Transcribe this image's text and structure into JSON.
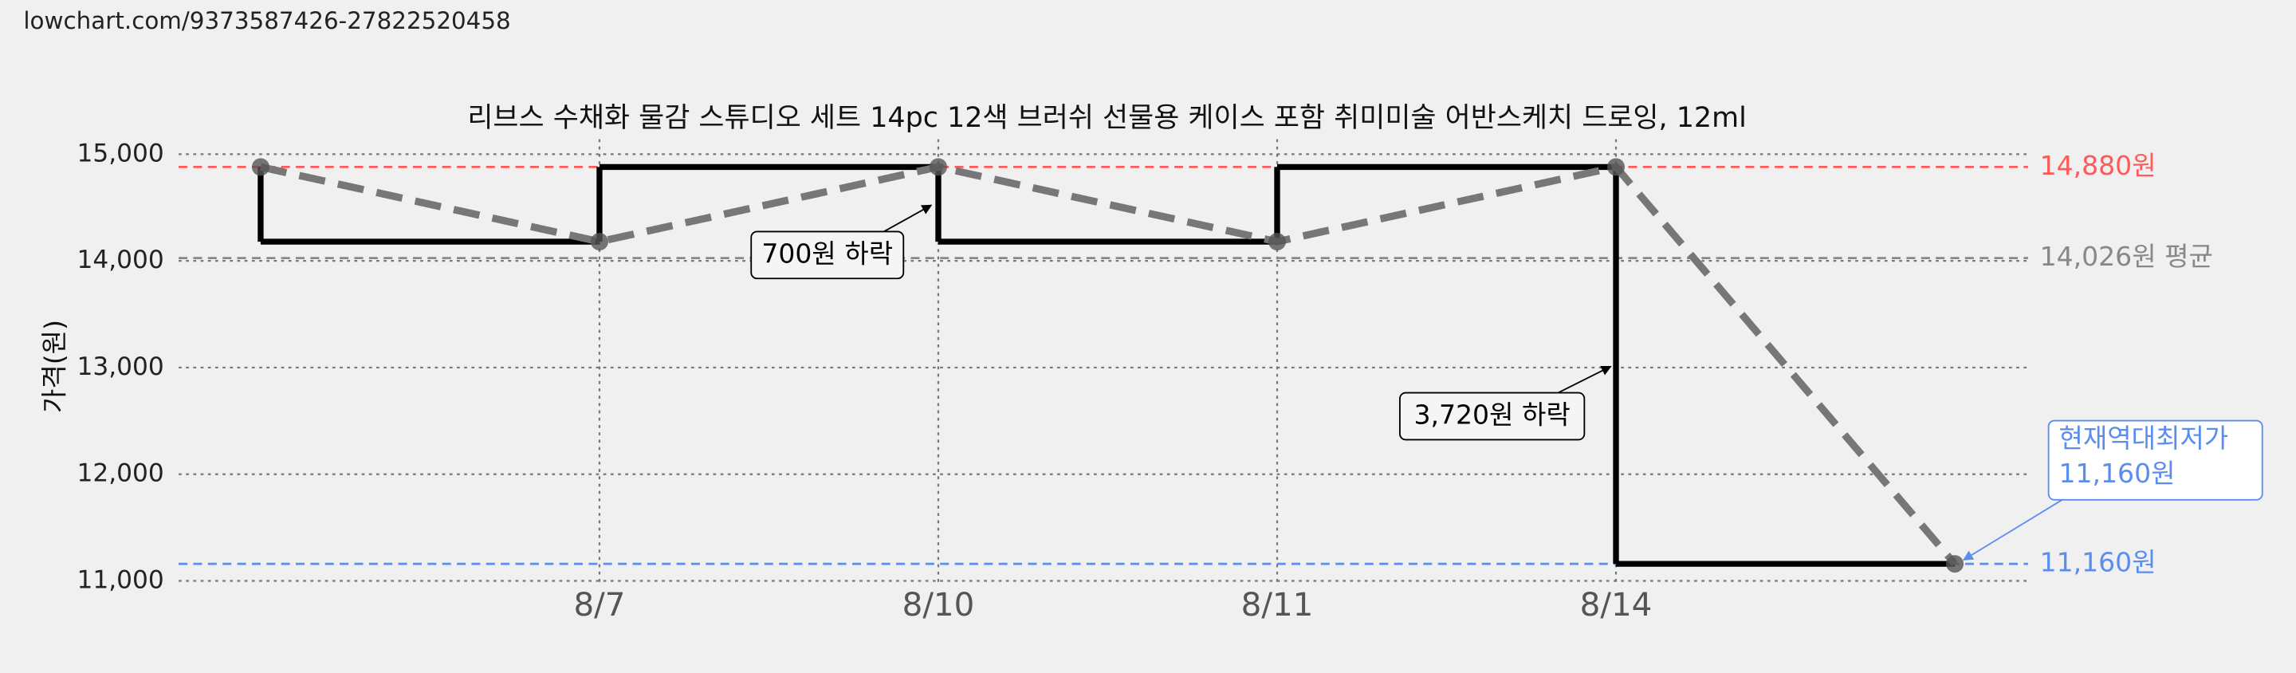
{
  "url": "lowchart.com/9373587426-27822520458",
  "chart_data": {
    "type": "line",
    "title": "리브스 수채화 물감 스튜디오 세트 14pc 12색 브러쉬 선물용 케이스 포함 취미미술 어반스케치 드로잉, 12ml",
    "y_label": "가격(원)",
    "categories": [
      null,
      "8/7",
      "8/10",
      "8/11",
      "8/14",
      null
    ],
    "series": [
      {
        "color": "#777777",
        "step_color": "#000000",
        "values": [
          14880,
          14180,
          14880,
          14180,
          14880,
          11160
        ]
      }
    ],
    "ylim": [
      10950,
      15140
    ],
    "yticks": [
      {
        "value": 11000,
        "label": "11,000"
      },
      {
        "value": 12000,
        "label": "12,000"
      },
      {
        "value": 13000,
        "label": "13,000"
      },
      {
        "value": 14000,
        "label": "14,000"
      },
      {
        "value": 15000,
        "label": "15,000"
      }
    ],
    "grid": true,
    "reference_lines": [
      {
        "value": 14880,
        "label": "14,880원",
        "color": "#ff5a5a"
      },
      {
        "value": 14026,
        "label": "14,026원 평균",
        "color": "#888888"
      },
      {
        "value": 11160,
        "label": "11,160원",
        "color": "#5b8def"
      }
    ],
    "annotations": [
      "700원 하락",
      "3,720원 하락"
    ],
    "low_callout": [
      "현재역대최저가",
      "11,160원"
    ]
  }
}
